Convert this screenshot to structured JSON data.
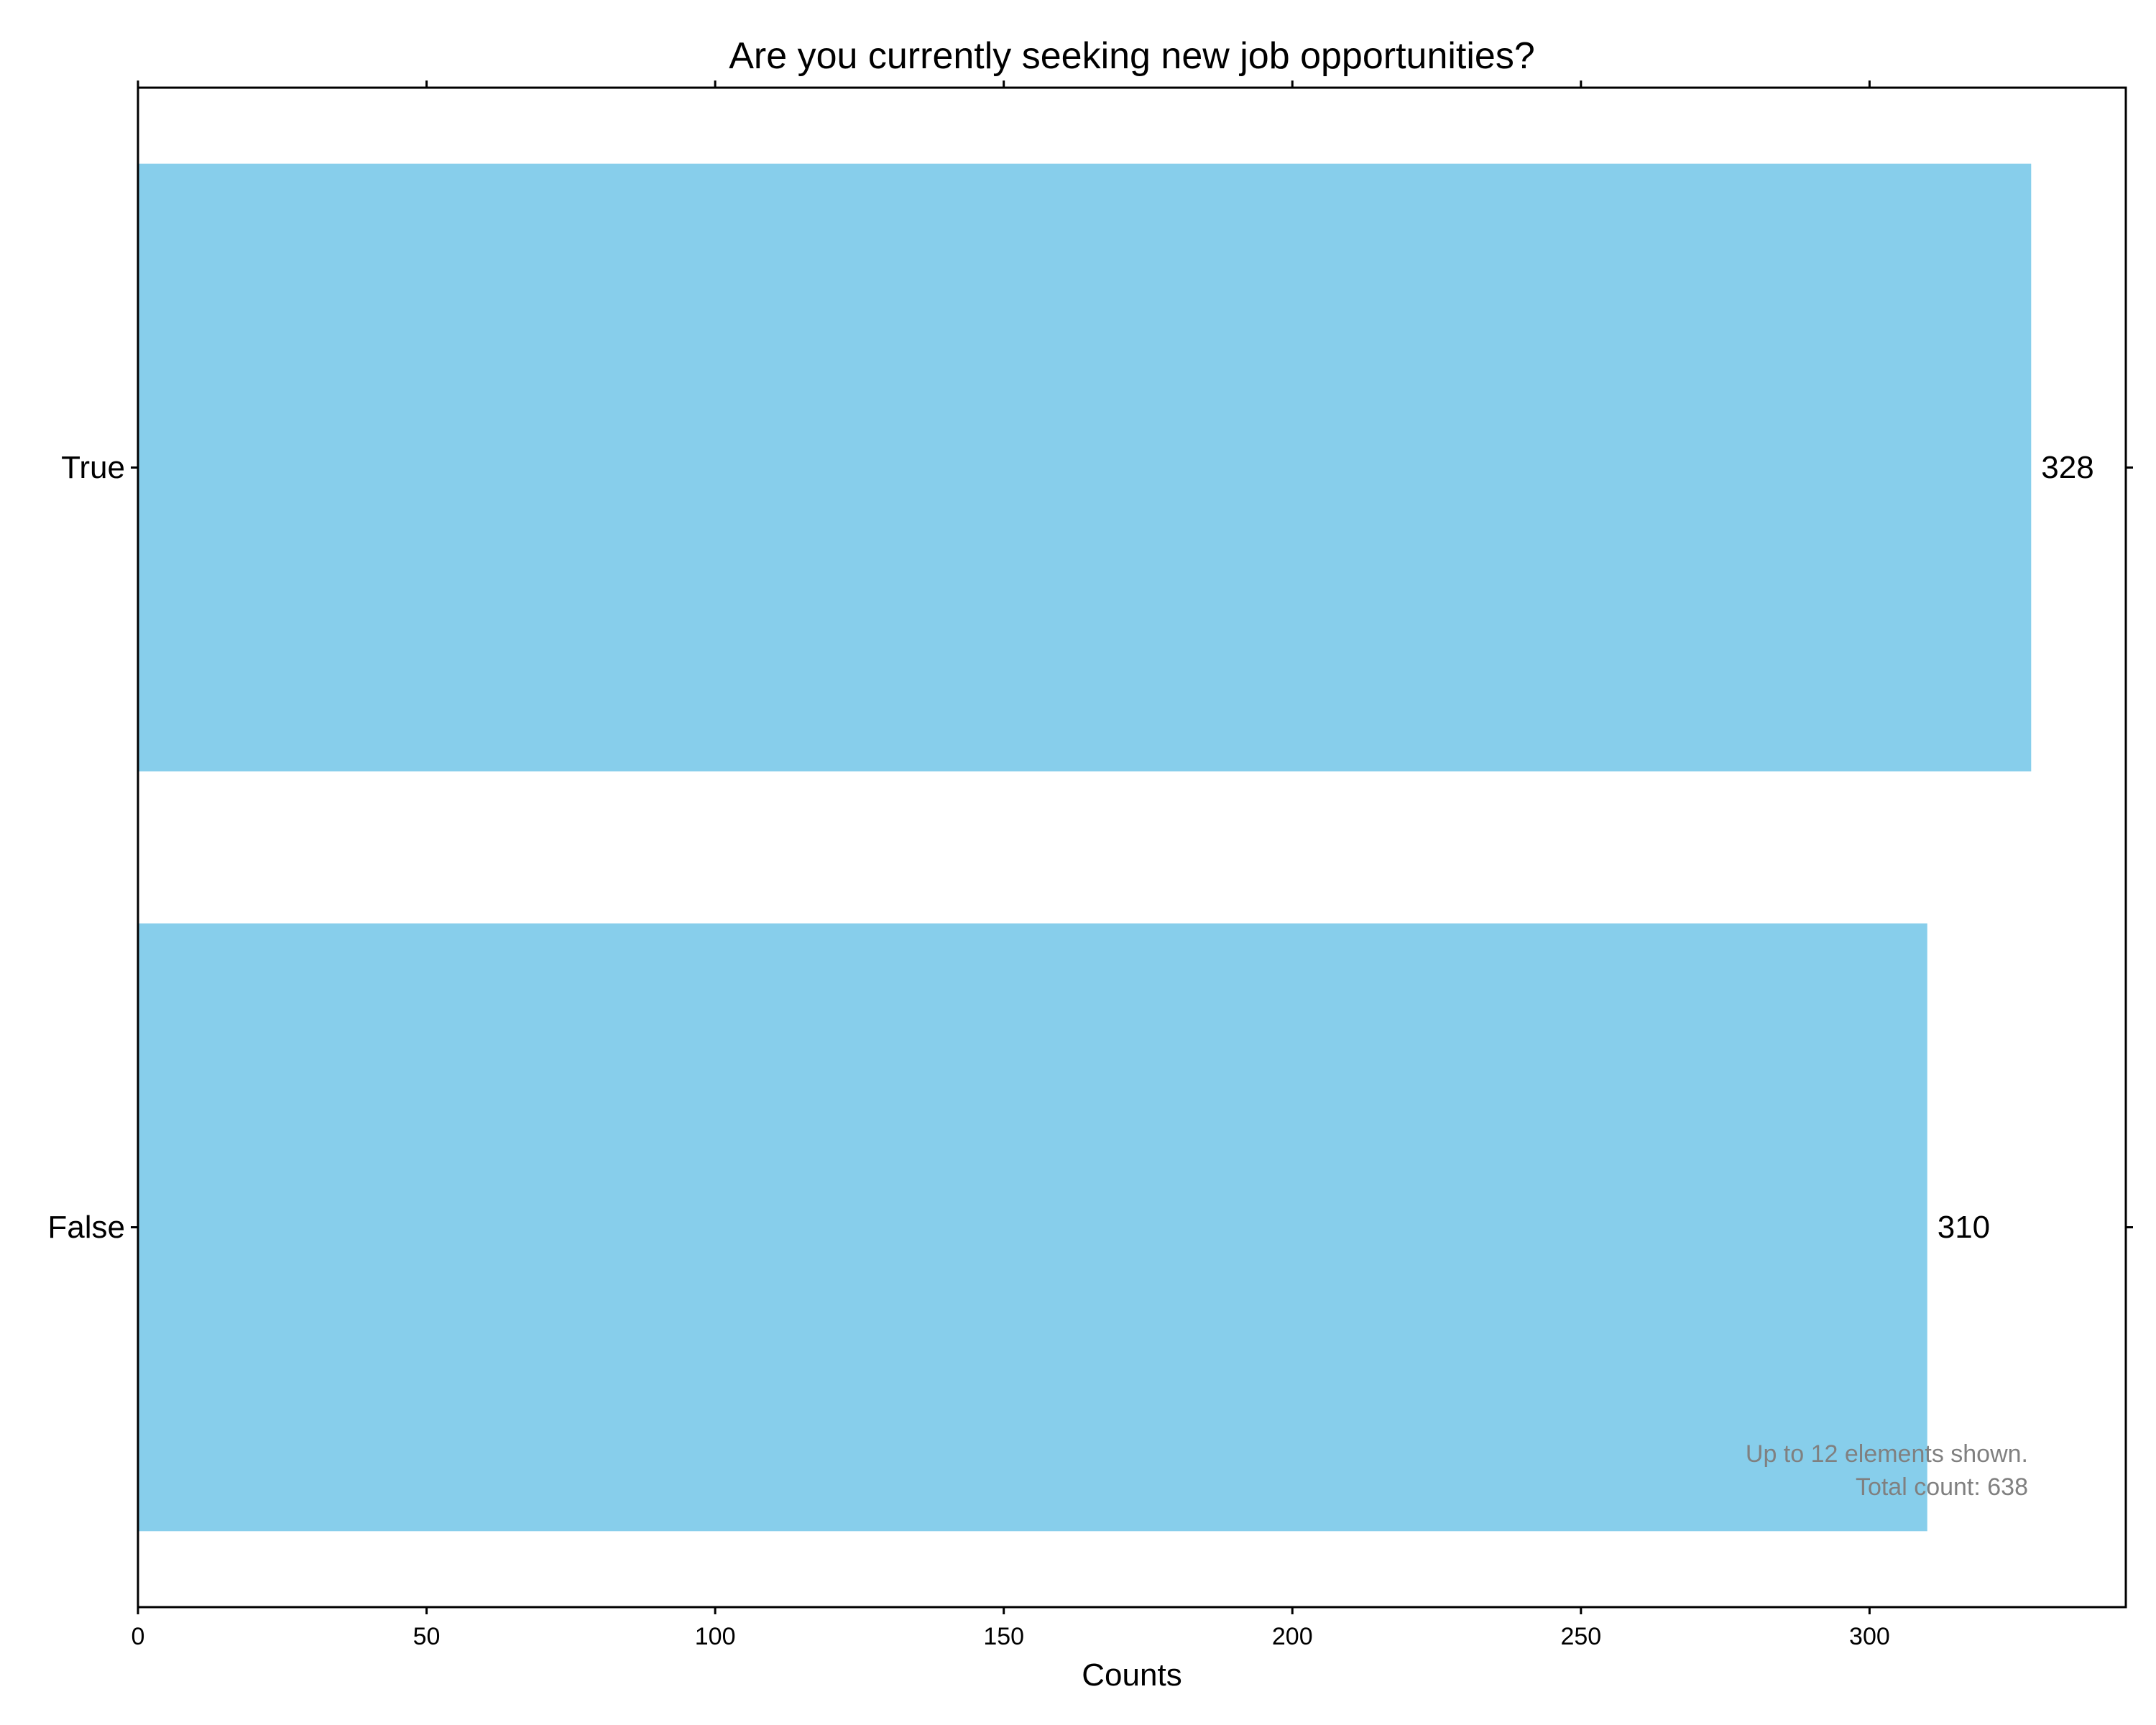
{
  "chart_data": {
    "type": "bar",
    "orientation": "horizontal",
    "title": "Are you currently seeking new job opportunities?",
    "xlabel": "Counts",
    "ylabel": "",
    "categories": [
      "True",
      "False"
    ],
    "values": [
      328,
      310
    ],
    "data_labels": [
      "328",
      "310"
    ],
    "xlim": [
      0,
      344.4
    ],
    "xticks": [
      0,
      50,
      100,
      150,
      200,
      250,
      300
    ],
    "xtick_labels": [
      "0",
      "50",
      "100",
      "150",
      "200",
      "250",
      "300"
    ],
    "grid": false,
    "bar_color": "#87CEEB",
    "annotation": {
      "line1": "Up to 12 elements shown.",
      "line2": "Total count: 638"
    }
  }
}
